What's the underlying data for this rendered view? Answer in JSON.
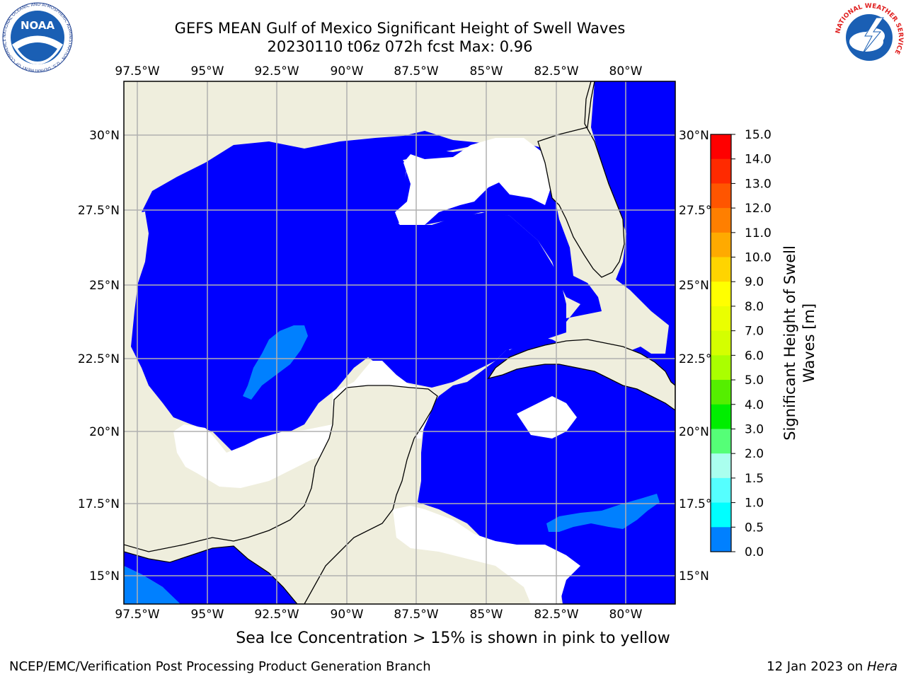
{
  "title": "GEFS MEAN Gulf of Mexico Significant Height of Swell Waves",
  "subtitle": "20230110 t06z 072h fcst   Max: 0.96",
  "map": {
    "lon_ticks": [
      "97.5°W",
      "95°W",
      "92.5°W",
      "90°W",
      "87.5°W",
      "85°W",
      "82.5°W",
      "80°W"
    ],
    "lat_ticks": [
      "30°N",
      "27.5°N",
      "25°N",
      "22.5°N",
      "20°N",
      "17.5°N",
      "15°N"
    ],
    "colors": {
      "land": "#efeedd",
      "ocean_low": "#0000ff",
      "ocean_mid": "#0080ff",
      "grid": "#b0b0b0"
    }
  },
  "colorbar": {
    "label_line1": "Significant Height of Swell",
    "label_line2": "Waves [m]",
    "ticks": [
      "15.0",
      "14.0",
      "13.0",
      "12.0",
      "11.0",
      "10.0",
      "9.0",
      "8.0",
      "7.0",
      "6.0",
      "5.0",
      "4.0",
      "3.0",
      "2.0",
      "1.5",
      "1.0",
      "0.5",
      "0.0"
    ],
    "colors": [
      "#ff0000",
      "#ff2a00",
      "#ff5500",
      "#ff7f00",
      "#ffaa00",
      "#ffd400",
      "#ffff00",
      "#eaff00",
      "#d4ff00",
      "#aaff00",
      "#55ee00",
      "#00ee00",
      "#55ff77",
      "#aaffee",
      "#55ffff",
      "#00ffff",
      "#0080ff",
      "#0000ff"
    ]
  },
  "note": "Sea Ice Concentration > 15% is shown in pink to yellow",
  "footer": {
    "left": "NCEP/EMC/Verification Post Processing Product Generation Branch",
    "date": "12 Jan 2023 on ",
    "machine": "Hera"
  },
  "logos": {
    "noaa": "NOAA",
    "noaa_ring": "NATIONAL OCEANIC AND ATMOSPHERIC ADMINISTRATION · U.S. DEPARTMENT OF COMMERCE ·",
    "nws_ring": "NATIONAL WEATHER SERVICE"
  }
}
